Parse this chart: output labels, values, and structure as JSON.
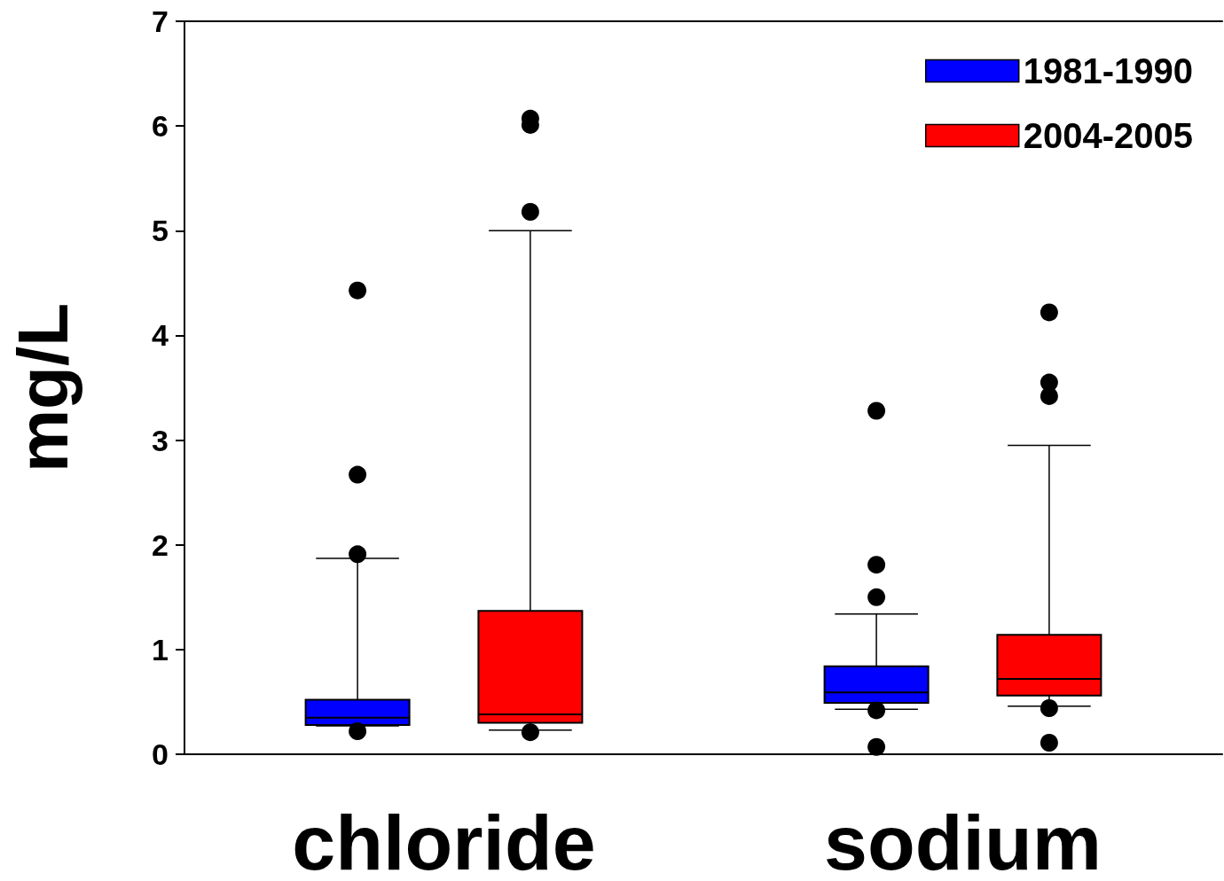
{
  "chart_data": {
    "type": "box",
    "ylabel": "mg/L",
    "categories": [
      "chloride",
      "sodium"
    ],
    "ylim": [
      0,
      7
    ],
    "yticks": [
      0,
      1,
      2,
      3,
      4,
      5,
      6,
      7
    ],
    "grid": false,
    "legend": "top right",
    "series": [
      {
        "name": "1981-1990",
        "color": "#0000ff",
        "boxes": [
          {
            "low": 0.27,
            "q1": 0.28,
            "median": 0.35,
            "q3": 0.52,
            "high": 1.87,
            "outliers": [
              0.22,
              1.91,
              2.67,
              4.43
            ]
          },
          {
            "low": 0.43,
            "q1": 0.49,
            "median": 0.59,
            "q3": 0.84,
            "high": 1.34,
            "outliers": [
              0.07,
              0.42,
              1.5,
              1.81,
              3.28
            ]
          }
        ]
      },
      {
        "name": "2004-2005",
        "color": "#ff0000",
        "boxes": [
          {
            "low": 0.23,
            "q1": 0.3,
            "median": 0.38,
            "q3": 1.37,
            "high": 5.0,
            "outliers": [
              0.21,
              5.18,
              6.01,
              6.07
            ]
          },
          {
            "low": 0.46,
            "q1": 0.56,
            "median": 0.72,
            "q3": 1.14,
            "high": 2.95,
            "outliers": [
              0.11,
              0.44,
              3.42,
              3.55,
              4.22
            ]
          }
        ]
      }
    ]
  }
}
